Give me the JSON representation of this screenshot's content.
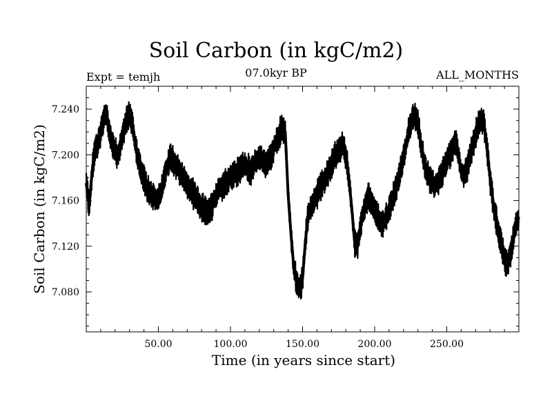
{
  "chart_data": {
    "type": "line",
    "title": "Soil Carbon (in kgC/m2)",
    "subtitle_left": "Expt = temjh",
    "subtitle_center": "07.0kyr BP",
    "subtitle_right": "ALL_MONTHS",
    "xlabel": "Time (in years since start)",
    "ylabel": "Soil Carbon (in kgC/m2)",
    "xlim": [
      0,
      300
    ],
    "ylim": [
      7.045,
      7.26
    ],
    "xticks": [
      50,
      100,
      150,
      200,
      250
    ],
    "xtick_labels": [
      "50.00",
      "100.00",
      "150.00",
      "200.00",
      "250.00"
    ],
    "yticks": [
      7.08,
      7.12,
      7.16,
      7.2,
      7.24
    ],
    "ytick_labels": [
      "7.080",
      "7.120",
      "7.160",
      "7.200",
      "7.240"
    ],
    "series": [
      {
        "name": "Soil Carbon",
        "x": [
          0,
          2,
          4,
          6,
          8,
          10,
          12,
          14,
          16,
          18,
          20,
          22,
          24,
          26,
          28,
          30,
          32,
          34,
          36,
          38,
          40,
          42,
          44,
          46,
          48,
          50,
          52,
          54,
          56,
          58,
          60,
          62,
          64,
          66,
          68,
          70,
          72,
          74,
          76,
          78,
          80,
          82,
          84,
          86,
          88,
          90,
          92,
          94,
          96,
          98,
          100,
          102,
          104,
          106,
          108,
          110,
          112,
          114,
          116,
          118,
          120,
          122,
          124,
          126,
          128,
          130,
          132,
          134,
          136,
          138,
          140,
          142,
          144,
          146,
          148,
          150,
          152,
          154,
          156,
          158,
          160,
          162,
          164,
          166,
          168,
          170,
          172,
          174,
          176,
          178,
          180,
          182,
          184,
          186,
          188,
          190,
          192,
          194,
          196,
          198,
          200,
          202,
          204,
          206,
          208,
          210,
          212,
          214,
          216,
          218,
          220,
          222,
          224,
          226,
          228,
          230,
          232,
          234,
          236,
          238,
          240,
          242,
          244,
          246,
          248,
          250,
          252,
          254,
          256,
          258,
          260,
          262,
          264,
          266,
          268,
          270,
          272,
          274,
          276,
          278,
          280,
          282,
          284,
          286,
          288,
          290,
          292,
          294,
          296,
          298,
          300
        ],
        "y": [
          7.175,
          7.155,
          7.185,
          7.205,
          7.21,
          7.218,
          7.232,
          7.235,
          7.22,
          7.21,
          7.205,
          7.198,
          7.21,
          7.222,
          7.23,
          7.235,
          7.228,
          7.21,
          7.195,
          7.185,
          7.178,
          7.172,
          7.168,
          7.165,
          7.162,
          7.16,
          7.168,
          7.178,
          7.19,
          7.198,
          7.196,
          7.192,
          7.188,
          7.182,
          7.178,
          7.174,
          7.17,
          7.166,
          7.162,
          7.158,
          7.155,
          7.152,
          7.15,
          7.152,
          7.158,
          7.165,
          7.17,
          7.172,
          7.175,
          7.178,
          7.18,
          7.182,
          7.184,
          7.186,
          7.19,
          7.192,
          7.188,
          7.186,
          7.19,
          7.194,
          7.198,
          7.196,
          7.192,
          7.194,
          7.198,
          7.205,
          7.212,
          7.218,
          7.225,
          7.22,
          7.165,
          7.13,
          7.1,
          7.088,
          7.082,
          7.092,
          7.125,
          7.148,
          7.155,
          7.16,
          7.165,
          7.17,
          7.175,
          7.18,
          7.186,
          7.192,
          7.198,
          7.202,
          7.205,
          7.208,
          7.2,
          7.18,
          7.155,
          7.125,
          7.12,
          7.135,
          7.15,
          7.16,
          7.165,
          7.158,
          7.15,
          7.145,
          7.142,
          7.14,
          7.145,
          7.152,
          7.16,
          7.168,
          7.176,
          7.186,
          7.198,
          7.21,
          7.222,
          7.232,
          7.235,
          7.228,
          7.21,
          7.195,
          7.185,
          7.18,
          7.175,
          7.172,
          7.175,
          7.18,
          7.188,
          7.195,
          7.2,
          7.206,
          7.212,
          7.2,
          7.185,
          7.18,
          7.188,
          7.198,
          7.208,
          7.218,
          7.226,
          7.232,
          7.225,
          7.205,
          7.18,
          7.16,
          7.145,
          7.13,
          7.12,
          7.11,
          7.105,
          7.112,
          7.125,
          7.14,
          7.145
        ]
      }
    ]
  }
}
